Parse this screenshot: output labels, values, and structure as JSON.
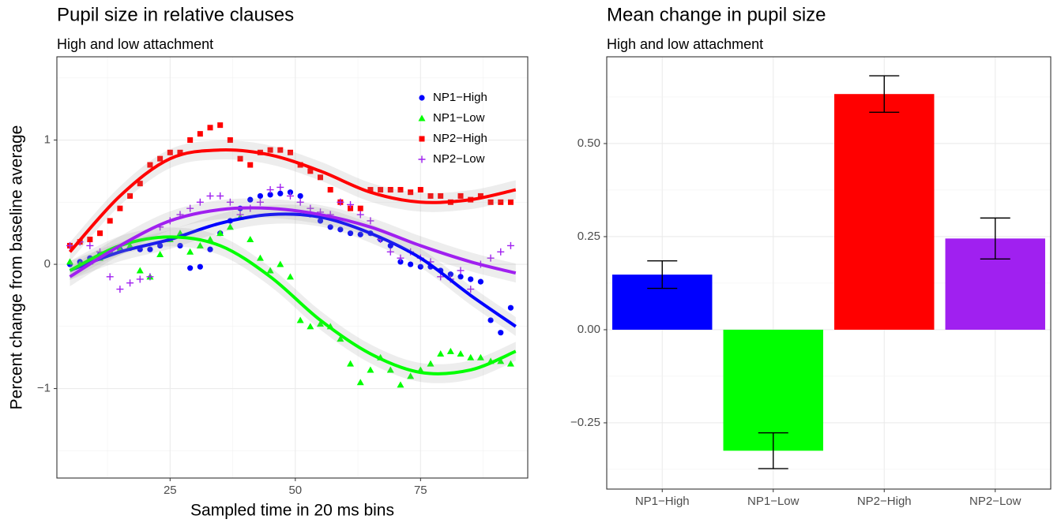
{
  "chart_data": [
    {
      "type": "scatter",
      "title": "Pupil size in relative clauses",
      "subtitle": "High and low attachment",
      "x_label": "Sampled time in 20 ms bins",
      "y_label": "Percent change from baseline average",
      "xlim": [
        2.4,
        96.4
      ],
      "ylim": [
        -1.72,
        1.67
      ],
      "xticks": [
        25,
        50,
        75
      ],
      "yticks": [
        {
          "value": -1,
          "label": "−1"
        },
        0,
        1
      ],
      "xticks_minor": [
        12.5,
        37.5,
        62.5,
        87.5
      ],
      "yticks_minor": [
        -1.5,
        -0.5,
        0.5,
        1.5
      ],
      "grid": true,
      "legend_position": "top-right",
      "x": [
        5,
        7,
        9,
        11,
        13,
        15,
        17,
        19,
        21,
        23,
        25,
        27,
        29,
        31,
        33,
        35,
        37,
        39,
        41,
        43,
        45,
        47,
        49,
        51,
        53,
        55,
        57,
        59,
        61,
        63,
        65,
        67,
        69,
        71,
        73,
        75,
        77,
        79,
        81,
        83,
        85,
        87,
        89,
        91,
        93
      ],
      "fit_x": [
        5,
        15,
        25,
        35,
        45,
        55,
        65,
        75,
        85,
        94
      ],
      "series": [
        {
          "name": "NP1−High",
          "color": "#0000ff",
          "marker": "circle",
          "values": [
            0.0,
            0.02,
            0.05,
            0.08,
            0.1,
            0.12,
            0.13,
            0.12,
            0.12,
            0.15,
            0.2,
            0.15,
            -0.03,
            -0.02,
            0.12,
            0.25,
            0.35,
            0.45,
            0.52,
            0.55,
            0.56,
            0.57,
            0.58,
            0.55,
            0.4,
            0.35,
            0.3,
            0.28,
            0.25,
            0.24,
            0.25,
            0.2,
            0.15,
            0.02,
            0.0,
            -0.02,
            -0.02,
            -0.05,
            -0.08,
            -0.1,
            -0.12,
            -0.14,
            -0.45,
            -0.55,
            -0.35
          ],
          "fit": [
            -0.05,
            0.1,
            0.2,
            0.33,
            0.4,
            0.38,
            0.25,
            0.05,
            -0.25,
            -0.5
          ]
        },
        {
          "name": "NP1−Low",
          "color": "#00ff00",
          "marker": "triangle",
          "values": [
            0.02,
            0.0,
            0.02,
            0.05,
            0.1,
            0.12,
            0.15,
            -0.05,
            -0.1,
            0.08,
            0.2,
            0.25,
            0.1,
            0.15,
            0.2,
            0.25,
            0.3,
            0.38,
            0.2,
            0.05,
            -0.05,
            0.0,
            -0.1,
            -0.45,
            -0.5,
            -0.48,
            -0.5,
            -0.6,
            -0.8,
            -0.95,
            -0.85,
            -0.75,
            -0.85,
            -0.97,
            -0.9,
            -0.85,
            -0.8,
            -0.72,
            -0.7,
            -0.72,
            -0.75,
            -0.75,
            -0.78,
            -0.78,
            -0.8
          ],
          "fit": [
            -0.05,
            0.15,
            0.22,
            0.15,
            -0.1,
            -0.45,
            -0.72,
            -0.87,
            -0.85,
            -0.7
          ]
        },
        {
          "name": "NP2−High",
          "color": "#ff0000",
          "marker": "square",
          "values": [
            0.15,
            0.18,
            0.2,
            0.25,
            0.35,
            0.45,
            0.55,
            0.65,
            0.8,
            0.85,
            0.9,
            0.9,
            1.0,
            1.05,
            1.1,
            1.12,
            1.0,
            0.85,
            0.8,
            0.9,
            0.92,
            0.92,
            0.9,
            0.8,
            0.75,
            0.7,
            0.6,
            0.5,
            0.45,
            0.45,
            0.6,
            0.6,
            0.6,
            0.6,
            0.58,
            0.6,
            0.55,
            0.55,
            0.5,
            0.55,
            0.52,
            0.55,
            0.5,
            0.5,
            0.5
          ],
          "fit": [
            0.1,
            0.55,
            0.85,
            0.92,
            0.88,
            0.75,
            0.58,
            0.5,
            0.52,
            0.6
          ]
        },
        {
          "name": "NP2−Low",
          "color": "#a020f0",
          "marker": "plus",
          "values": [
            0.15,
            0.18,
            0.15,
            0.1,
            -0.1,
            -0.2,
            -0.15,
            -0.12,
            -0.1,
            0.3,
            0.35,
            0.4,
            0.45,
            0.5,
            0.55,
            0.55,
            0.5,
            0.4,
            0.45,
            0.5,
            0.6,
            0.62,
            0.55,
            0.5,
            0.45,
            0.42,
            0.4,
            0.5,
            0.48,
            0.4,
            0.35,
            0.2,
            0.1,
            0.05,
            0.1,
            0.05,
            0.02,
            -0.1,
            -0.12,
            -0.05,
            -0.2,
            0.0,
            0.05,
            0.1,
            0.15
          ],
          "fit": [
            -0.1,
            0.15,
            0.35,
            0.44,
            0.45,
            0.4,
            0.3,
            0.15,
            0.02,
            -0.07
          ]
        }
      ]
    },
    {
      "type": "bar",
      "title": "Mean change in pupil size",
      "subtitle": "High and low attachment",
      "categories": [
        "NP1−High",
        "NP1−Low",
        "NP2−High",
        "NP2−Low"
      ],
      "values": [
        0.148,
        -0.325,
        0.633,
        0.245
      ],
      "errors": [
        0.037,
        0.048,
        0.049,
        0.055
      ],
      "colors": [
        "#0000ff",
        "#00ff00",
        "#ff0000",
        "#a020f0"
      ],
      "ylim": [
        -0.428,
        0.733
      ],
      "yticks": [
        {
          "value": -0.25,
          "label": "−0.25"
        },
        {
          "value": 0,
          "label": "0.00"
        },
        {
          "value": 0.25,
          "label": "0.25"
        },
        {
          "value": 0.5,
          "label": "0.50"
        }
      ],
      "yticks_minor": [
        -0.375,
        -0.125,
        0.125,
        0.375,
        0.625
      ],
      "grid": true
    }
  ]
}
